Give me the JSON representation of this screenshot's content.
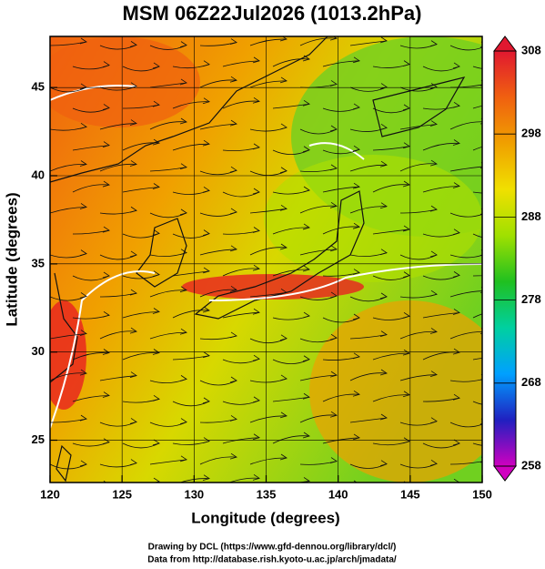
{
  "chart_data": {
    "type": "map",
    "title": "MSM 06Z22Jul2026 (1013.2hPa)",
    "xlabel": "Longitude (degrees)",
    "ylabel": "Latitude  (degrees)",
    "xlim": [
      120,
      150
    ],
    "xticks": [
      120,
      125,
      130,
      135,
      140,
      145,
      150
    ],
    "ylim": [
      22.6,
      47.9
    ],
    "yticks": [
      25,
      30,
      35,
      40,
      45
    ],
    "grid": true,
    "colorbar": {
      "lim": [
        258,
        308
      ],
      "ticks": [
        258,
        268,
        278,
        288,
        298,
        308
      ],
      "colors": [
        "#d000c0",
        "#2020c0",
        "#00a0ff",
        "#00d0a0",
        "#20c020",
        "#a0e000",
        "#f0e000",
        "#f0a000",
        "#f06010",
        "#e01830"
      ]
    },
    "footer": [
      "Drawing by DCL (https://www.gfd-dennou.org/library/dcl/)",
      "Data from http://database.rish.kyoto-u.ac.jp/arch/jmadata/"
    ]
  }
}
